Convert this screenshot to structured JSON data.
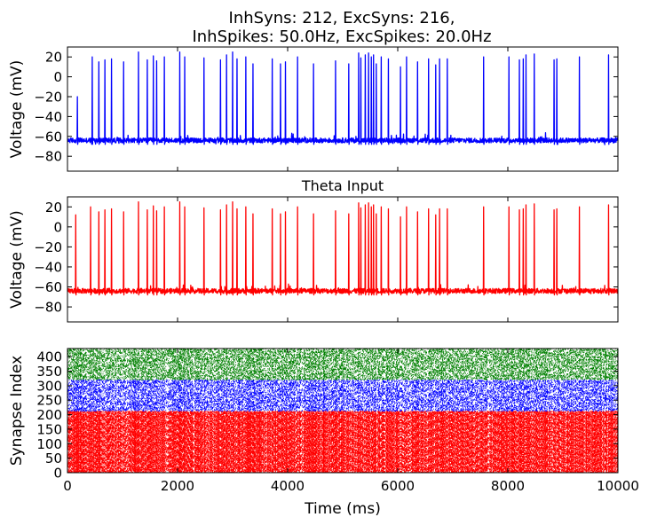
{
  "figure": {
    "title_line1": "InhSyns: 212, ExcSyns: 216,",
    "title_line2": "InhSpikes: 50.0Hz, ExcSpikes: 20.0Hz"
  },
  "chart_data": [
    {
      "type": "line",
      "title": "",
      "xlabel": "",
      "ylabel": "Voltage (mV)",
      "xlim": [
        0,
        10000
      ],
      "ylim": [
        -95,
        30
      ],
      "yticks": [
        20,
        0,
        -20,
        -40,
        -60,
        -80
      ],
      "xticks": [
        0,
        2000,
        4000,
        6000,
        8000,
        10000
      ],
      "show_xtick_labels": false,
      "grid": false,
      "series": [
        {
          "color": "#0000ff",
          "baseline": -64,
          "spike_times_ms": [
            180,
            450,
            570,
            680,
            800,
            1020,
            1290,
            1450,
            1560,
            1620,
            1760,
            2040,
            2130,
            2480,
            2780,
            2890,
            3000,
            3080,
            3240,
            3370,
            3720,
            3870,
            3960,
            4180,
            4470,
            4870,
            5110,
            5290,
            5330,
            5410,
            5470,
            5520,
            5560,
            5610,
            5700,
            5830,
            6050,
            6160,
            6360,
            6560,
            6690,
            6760,
            6900,
            7560,
            8020,
            8210,
            8280,
            8330,
            8480,
            8840,
            8890,
            9300,
            9830
          ],
          "spike_peaks_mv": [
            -20,
            20,
            15,
            17,
            18,
            15,
            25,
            17,
            21,
            16,
            20,
            25,
            20,
            19,
            17,
            22,
            25,
            18,
            20,
            13,
            18,
            13,
            15,
            20,
            13,
            16,
            13,
            24,
            19,
            22,
            24,
            20,
            22,
            13,
            20,
            18,
            10,
            20,
            15,
            18,
            12,
            18,
            18,
            20,
            20,
            17,
            18,
            22,
            23,
            17,
            18,
            20,
            22
          ]
        }
      ]
    },
    {
      "type": "line",
      "title": "Theta Input",
      "xlabel": "",
      "ylabel": "Voltage (mV)",
      "xlim": [
        0,
        10000
      ],
      "ylim": [
        -95,
        30
      ],
      "yticks": [
        20,
        0,
        -20,
        -40,
        -60,
        -80
      ],
      "xticks": [
        0,
        2000,
        4000,
        6000,
        8000,
        10000
      ],
      "show_xtick_labels": false,
      "grid": false,
      "series": [
        {
          "color": "#ff0000",
          "baseline": -64,
          "spike_times_ms": [
            150,
            420,
            570,
            680,
            800,
            1020,
            1290,
            1450,
            1560,
            1620,
            1760,
            2040,
            2130,
            2480,
            2780,
            2890,
            3000,
            3080,
            3240,
            3370,
            3720,
            3870,
            3960,
            4180,
            4470,
            4870,
            5110,
            5290,
            5330,
            5410,
            5470,
            5520,
            5560,
            5610,
            5700,
            5830,
            6050,
            6160,
            6360,
            6560,
            6690,
            6760,
            6900,
            7560,
            8020,
            8210,
            8280,
            8330,
            8480,
            8840,
            8890,
            9300,
            9830
          ],
          "spike_peaks_mv": [
            12,
            20,
            15,
            17,
            18,
            15,
            25,
            17,
            21,
            16,
            20,
            25,
            20,
            19,
            17,
            22,
            25,
            18,
            20,
            13,
            18,
            13,
            15,
            20,
            13,
            16,
            13,
            24,
            19,
            22,
            24,
            20,
            22,
            13,
            20,
            18,
            10,
            20,
            15,
            18,
            12,
            18,
            18,
            20,
            20,
            17,
            18,
            22,
            23,
            17,
            18,
            20,
            22
          ]
        }
      ]
    },
    {
      "type": "scatter",
      "title": "",
      "xlabel": "Time (ms)",
      "ylabel": "Synapse Index",
      "xlim": [
        0,
        10000
      ],
      "ylim": [
        0,
        428
      ],
      "yticks": [
        0,
        50,
        100,
        150,
        200,
        250,
        300,
        350,
        400
      ],
      "xticks": [
        0,
        2000,
        4000,
        6000,
        8000,
        10000
      ],
      "show_xtick_labels": true,
      "grid": false,
      "series": [
        {
          "color": "#ff0000",
          "index_range": [
            0,
            212
          ],
          "rate_hz": 50.0
        },
        {
          "color": "#0000ff",
          "index_range": [
            212,
            320
          ],
          "rate_hz": 20.0
        },
        {
          "color": "#008000",
          "index_range": [
            320,
            428
          ],
          "rate_hz": 20.0
        }
      ]
    }
  ]
}
